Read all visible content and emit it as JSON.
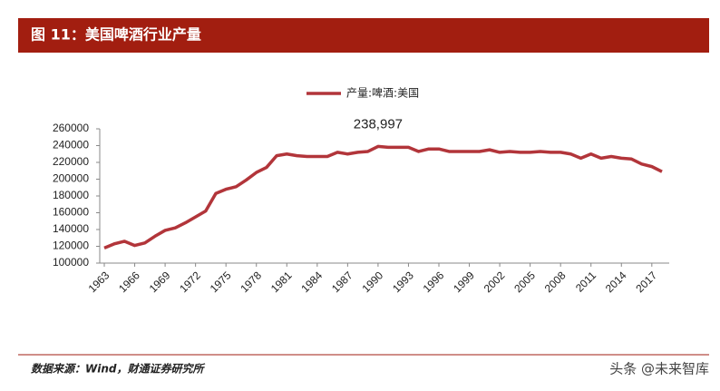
{
  "chart_data": {
    "type": "line",
    "title": "图 11：美国啤酒行业产量",
    "source": "数据来源：Wind，财通证券研究所",
    "watermark": "头条 @未来智库",
    "x": [
      1963,
      1964,
      1965,
      1966,
      1967,
      1968,
      1969,
      1970,
      1971,
      1972,
      1973,
      1974,
      1975,
      1976,
      1977,
      1978,
      1979,
      1980,
      1981,
      1982,
      1983,
      1984,
      1985,
      1986,
      1987,
      1988,
      1989,
      1990,
      1991,
      1992,
      1993,
      1994,
      1995,
      1996,
      1997,
      1998,
      1999,
      2000,
      2001,
      2002,
      2003,
      2004,
      2005,
      2006,
      2007,
      2008,
      2009,
      2010,
      2011,
      2012,
      2013,
      2014,
      2015,
      2016,
      2017,
      2018
    ],
    "series": [
      {
        "name": "产量:啤酒:美国",
        "color": "#b2353a",
        "values": [
          118000,
          123000,
          126000,
          121000,
          124000,
          132000,
          139000,
          142000,
          148000,
          155000,
          162000,
          183000,
          188000,
          191000,
          199000,
          208000,
          214000,
          228000,
          230000,
          228000,
          227000,
          227000,
          227000,
          232000,
          230000,
          232000,
          233000,
          238997,
          238000,
          238000,
          238000,
          233000,
          236000,
          236000,
          233000,
          233000,
          233000,
          233000,
          235000,
          232000,
          233000,
          232000,
          232000,
          233000,
          232000,
          232000,
          230000,
          225000,
          230000,
          225000,
          227000,
          225000,
          224000,
          218000,
          215000,
          209000
        ],
        "value_labels": [
          null,
          null,
          null,
          null,
          null,
          null,
          null,
          null,
          null,
          null,
          null,
          null,
          null,
          null,
          null,
          null,
          null,
          null,
          null,
          null,
          null,
          null,
          null,
          null,
          null,
          null,
          null,
          "238,997",
          null,
          null,
          null,
          null,
          null,
          null,
          null,
          null,
          null,
          null,
          null,
          null,
          null,
          null,
          null,
          null,
          null,
          null,
          null,
          null,
          null,
          null,
          null,
          null,
          null,
          null,
          null,
          null
        ]
      }
    ],
    "xlim": [
      1963,
      2018
    ],
    "xticks": [
      1963,
      1966,
      1969,
      1972,
      1975,
      1978,
      1981,
      1984,
      1987,
      1990,
      1993,
      1996,
      1999,
      2002,
      2005,
      2008,
      2011,
      2014,
      2017
    ],
    "ylim": [
      100000,
      260000
    ],
    "yticks": [
      100000,
      120000,
      140000,
      160000,
      180000,
      200000,
      220000,
      240000,
      260000
    ],
    "legend": "top"
  }
}
